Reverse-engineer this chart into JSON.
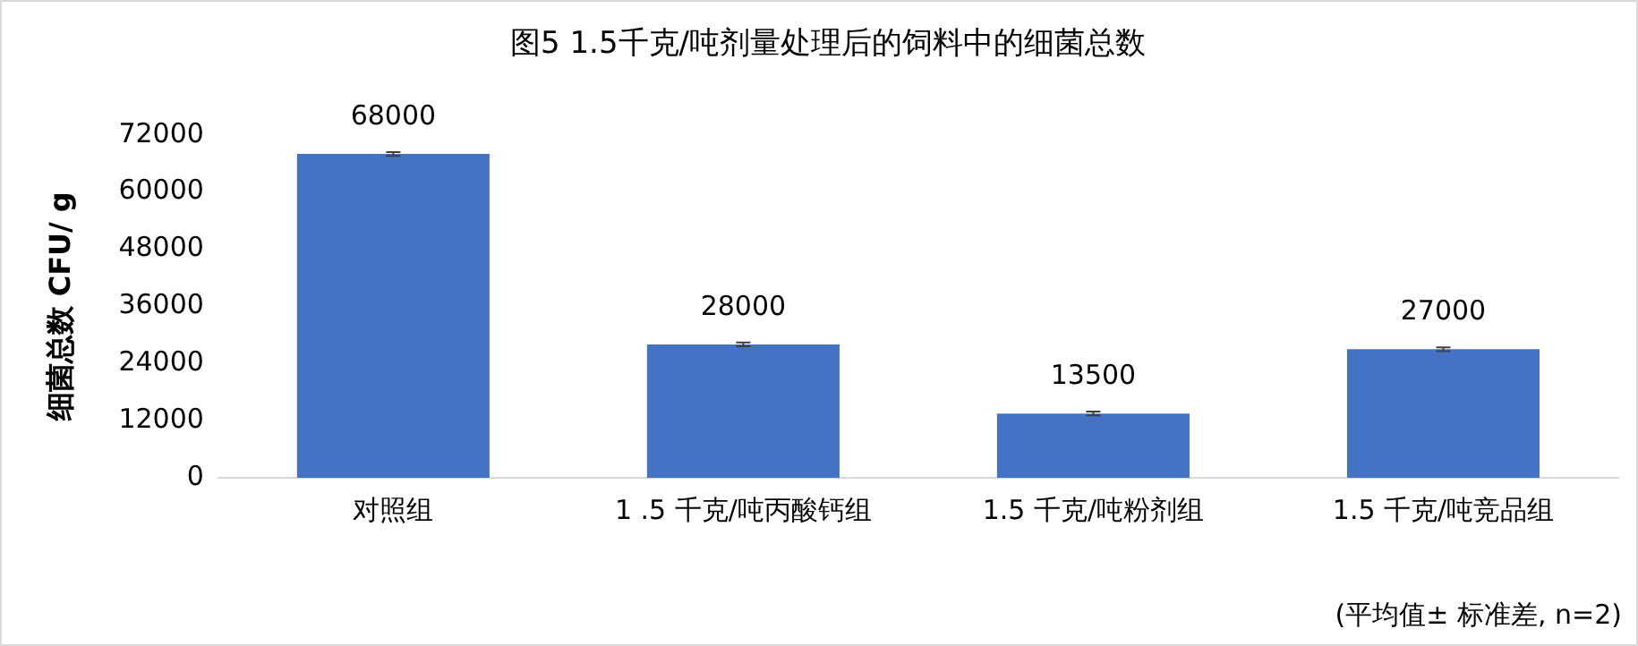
{
  "chart_data": {
    "type": "bar",
    "title": "图5 1.5千克/吨剂量处理后的饲料中的细菌总数",
    "ylabel": "细菌总数 CFU/ g",
    "categories": [
      "对照组",
      "1 .5 千克/吨丙酸钙组",
      "1.5 千克/吨粉剂组",
      "1.5 千克/吨竞品组"
    ],
    "values": [
      68000,
      28000,
      13500,
      27000
    ],
    "errors": [
      400,
      400,
      400,
      400
    ],
    "color": "#4472c4",
    "ylim": [
      0,
      72000
    ],
    "yticks": [
      0,
      12000,
      24000,
      36000,
      48000,
      60000,
      72000
    ],
    "grid": false,
    "legend": false,
    "data_labels": true,
    "annotations": [
      "(平均值± 标准差, n=2)"
    ]
  }
}
